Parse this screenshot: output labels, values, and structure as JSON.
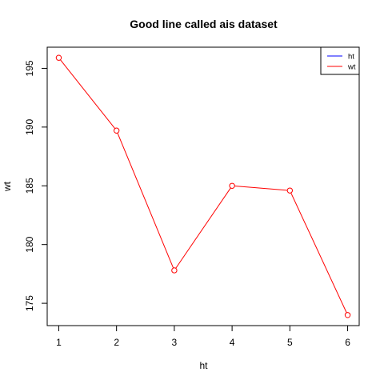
{
  "chart_data": {
    "type": "line",
    "title": "Good line called ais dataset",
    "xlabel": "ht",
    "ylabel": "wt",
    "x": [
      1,
      2,
      3,
      4,
      5,
      6
    ],
    "series": [
      {
        "name": "wt",
        "values": [
          195.9,
          189.7,
          177.8,
          185.0,
          184.6,
          174.0
        ],
        "color": "#ff0000",
        "marker": "open-circle"
      }
    ],
    "legend": {
      "position": "top-right",
      "entries": [
        {
          "label": "ht",
          "color": "#0000ff"
        },
        {
          "label": "wt",
          "color": "#ff0000"
        }
      ]
    },
    "xlim": [
      0.8,
      6.2
    ],
    "ylim": [
      173.1,
      196.8
    ],
    "xticks": [
      1,
      2,
      3,
      4,
      5,
      6
    ],
    "yticks": [
      175,
      180,
      185,
      190,
      195
    ],
    "grid": false
  }
}
